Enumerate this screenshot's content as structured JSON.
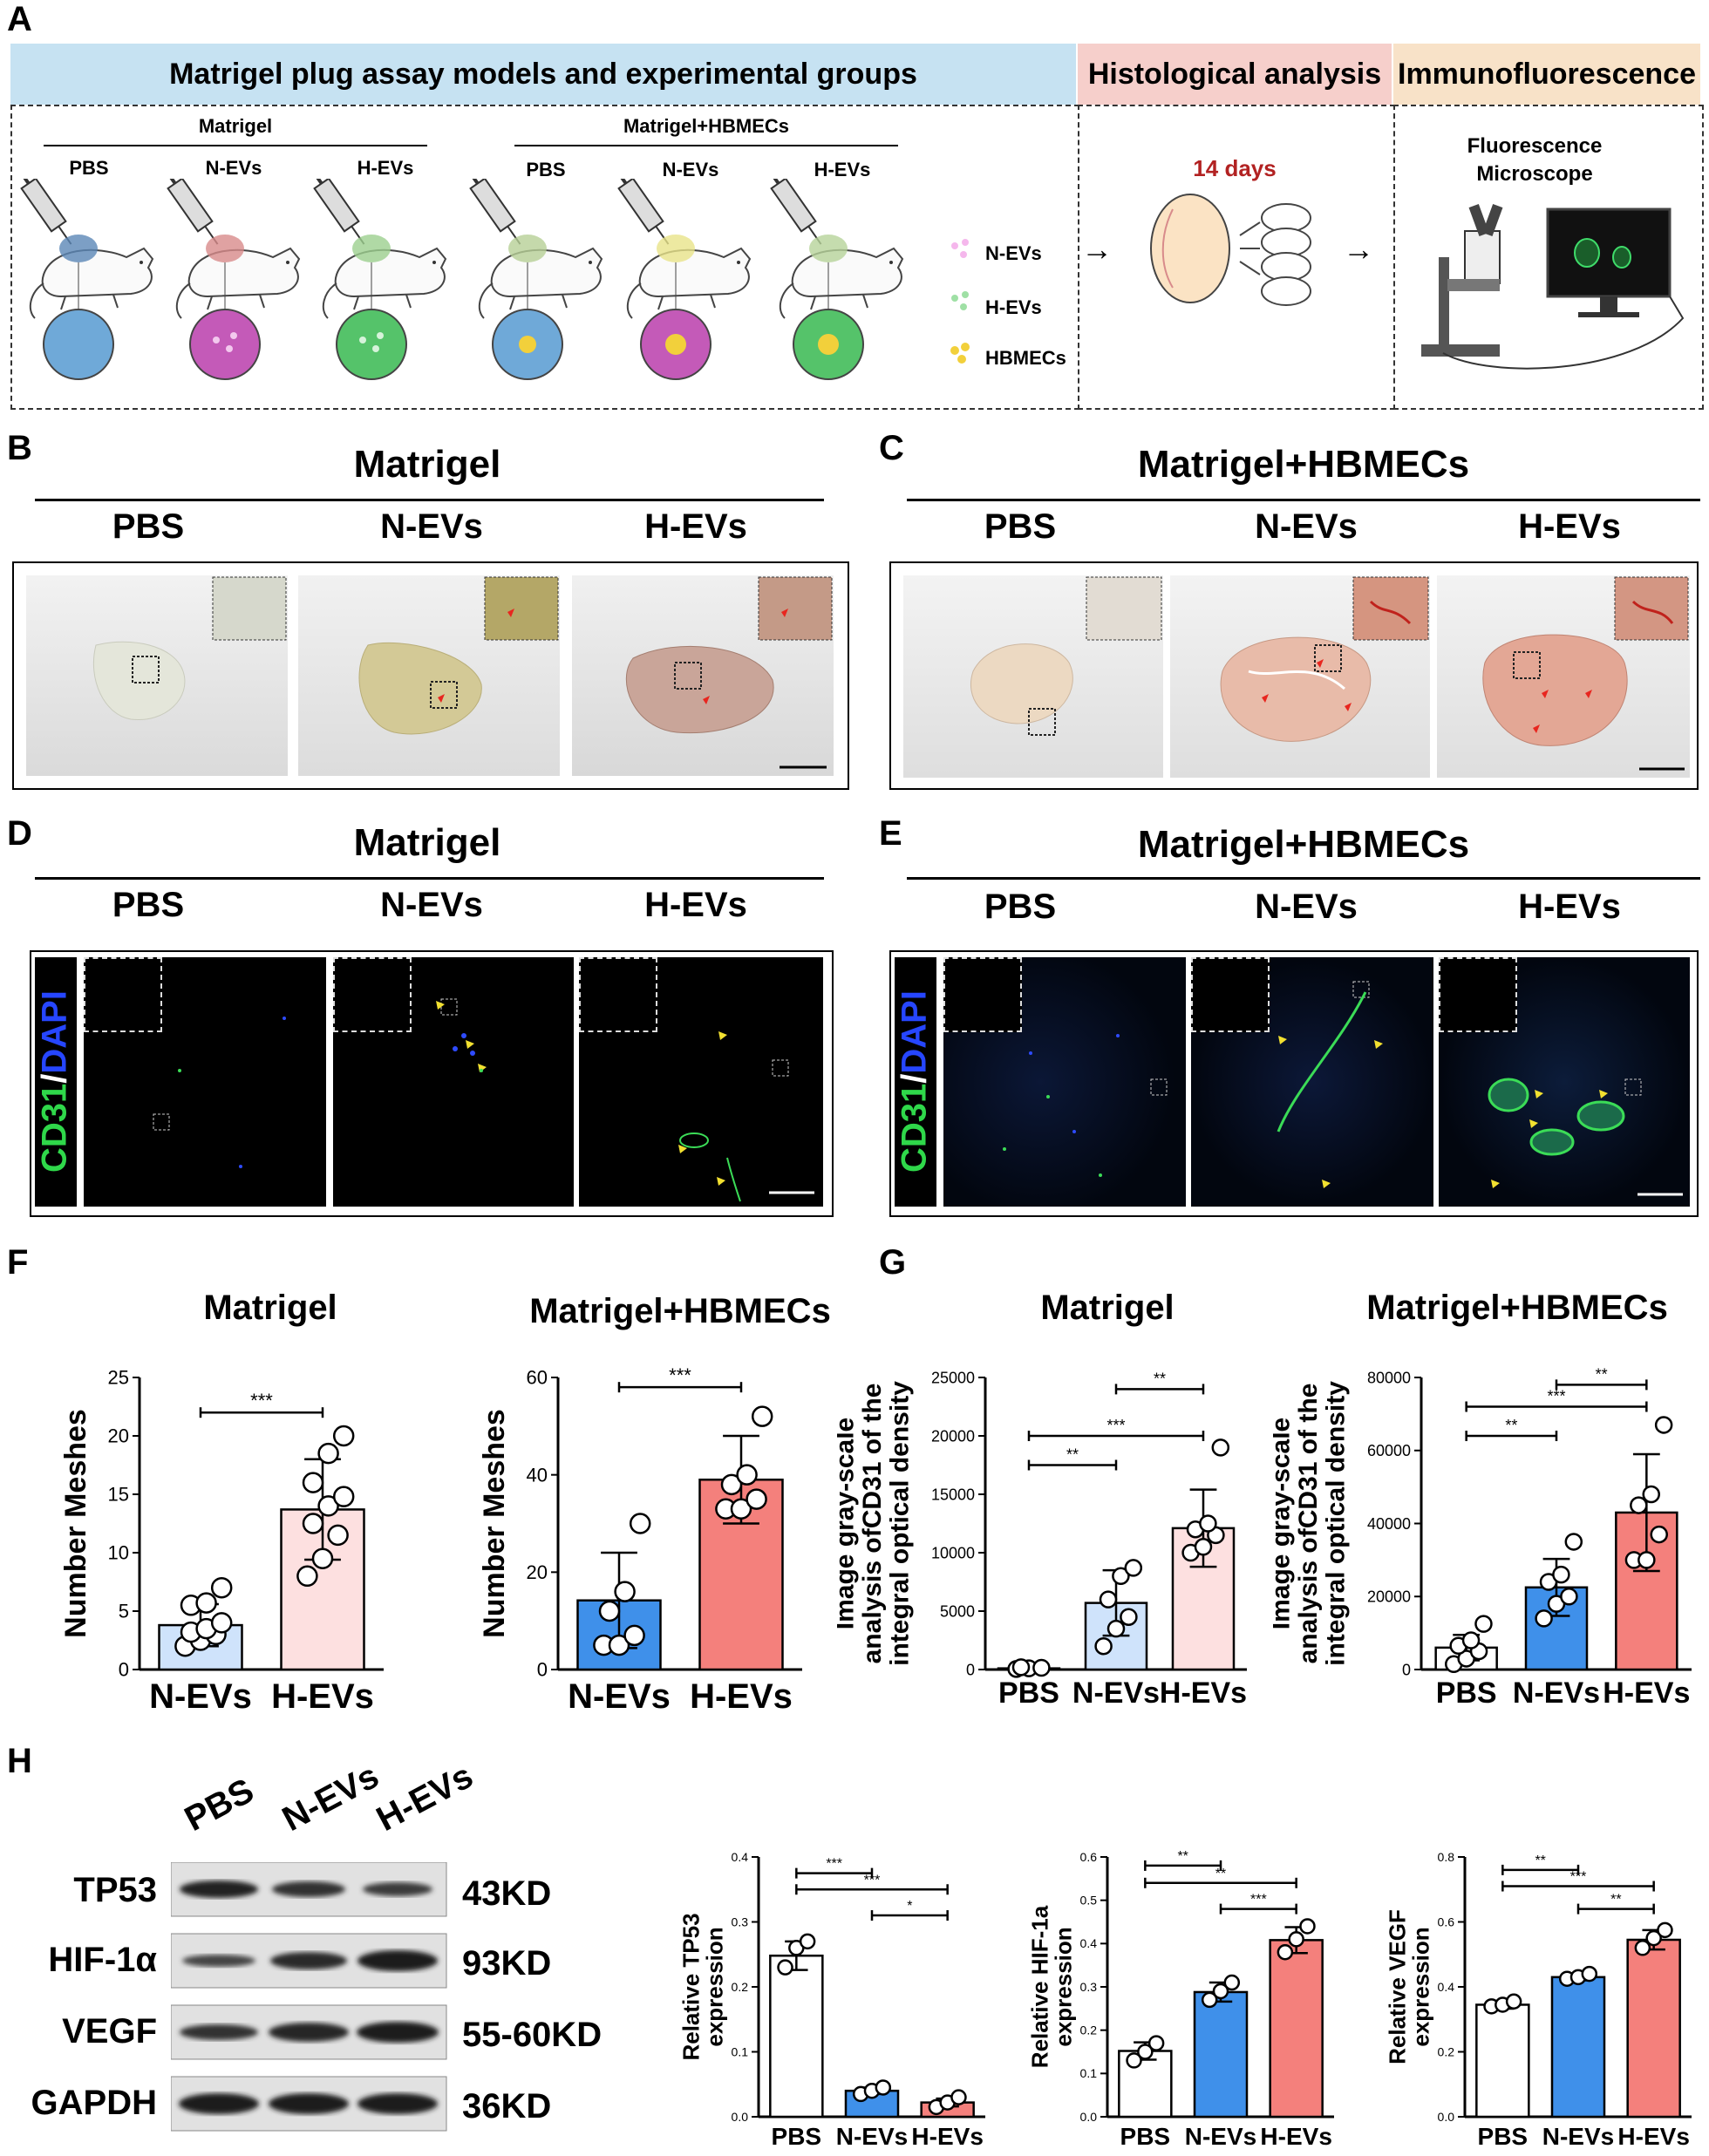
{
  "panels": {
    "A": "A",
    "B": "B",
    "C": "C",
    "D": "D",
    "E": "E",
    "F": "F",
    "G": "G",
    "H": "H"
  },
  "panelA": {
    "banner_left": "Matrigel plug assay models and experimental groups",
    "banner_mid": "Histological analysis",
    "banner_right": "Immunofluorescence",
    "group1": "Matrigel",
    "group2": "Matrigel+HBMECs",
    "labels": [
      "PBS",
      "N-EVs",
      "H-EVs",
      "PBS",
      "N-EVs",
      "H-EVs"
    ],
    "legend": [
      "N-EVs",
      "H-EVs",
      "HBMECs"
    ],
    "days": "14 days",
    "microscope": "Fluorescence\nMicroscope",
    "colors": {
      "banner_left": "#c6e2f2",
      "banner_mid": "#f6cfcb",
      "banner_right": "#f8e2c8",
      "days": "#b22222"
    }
  },
  "panelB": {
    "title": "Matrigel",
    "cols": [
      "PBS",
      "N-EVs",
      "H-EVs"
    ]
  },
  "panelC": {
    "title": "Matrigel+HBMECs",
    "cols": [
      "PBS",
      "N-EVs",
      "H-EVs"
    ]
  },
  "panelD": {
    "title": "Matrigel",
    "cols": [
      "PBS",
      "N-EVs",
      "H-EVs"
    ],
    "stain_a": "CD31",
    "stain_sep": "/",
    "stain_b": "DAPI"
  },
  "panelE": {
    "title": "Matrigel+HBMECs",
    "cols": [
      "PBS",
      "N-EVs",
      "H-EVs"
    ],
    "stain_a": "CD31",
    "stain_sep": "/",
    "stain_b": "DAPI"
  },
  "panelF_titles": [
    "Matrigel",
    "Matrigel+HBMECs"
  ],
  "panelG_titles": [
    "Matrigel",
    "Matrigel+HBMECs"
  ],
  "blot": {
    "lanes": [
      "PBS",
      "N-EVs",
      "H-EVs"
    ],
    "rows": [
      {
        "label": "TP53",
        "kd": "43KD"
      },
      {
        "label": "HIF-1α",
        "kd": "93KD"
      },
      {
        "label": "VEGF",
        "kd": "55-60KD"
      },
      {
        "label": "GAPDH",
        "kd": "36KD"
      }
    ]
  },
  "chart_data": [
    {
      "id": "F1",
      "type": "bar",
      "title": "Matrigel",
      "categories": [
        "N-EVs",
        "H-EVs"
      ],
      "values": [
        3.8,
        13.7
      ],
      "errors": [
        1.8,
        4.3
      ],
      "points": [
        [
          2,
          2.5,
          3,
          3.2,
          3.5,
          4,
          5.5,
          5.7,
          7
        ],
        [
          8,
          9.5,
          11.5,
          12.5,
          14,
          14.8,
          16,
          18.5,
          20
        ]
      ],
      "ylabel": "Number Meshes",
      "ylim": [
        0,
        25
      ],
      "yticks": [
        0,
        5,
        10,
        15,
        20,
        25
      ],
      "colors": [
        "#cfe3fb",
        "#fde0e0"
      ],
      "sig": [
        {
          "from": 0,
          "to": 1,
          "label": "***",
          "y": 22
        }
      ]
    },
    {
      "id": "F2",
      "type": "bar",
      "title": "Matrigel+HBMECs",
      "categories": [
        "N-EVs",
        "H-EVs"
      ],
      "values": [
        14.2,
        39
      ],
      "errors": [
        9.8,
        9
      ],
      "points": [
        [
          5,
          5,
          7,
          12,
          16,
          30
        ],
        [
          33,
          33,
          35,
          38,
          40,
          52
        ]
      ],
      "ylabel": "Number Meshes",
      "ylim": [
        0,
        60
      ],
      "yticks": [
        0,
        20,
        40,
        60
      ],
      "colors": [
        "#3f90ea",
        "#f4807c"
      ],
      "sig": [
        {
          "from": 0,
          "to": 1,
          "label": "***",
          "y": 58
        }
      ]
    },
    {
      "id": "G1",
      "type": "bar",
      "title": "Matrigel",
      "categories": [
        "PBS",
        "N-EVs",
        "H-EVs"
      ],
      "values": [
        100,
        5700,
        12100
      ],
      "errors": [
        100,
        2800,
        3300
      ],
      "points": [
        [
          50,
          100,
          150,
          200
        ],
        [
          2000,
          3500,
          4500,
          6000,
          8000,
          8700
        ],
        [
          10000,
          10500,
          11500,
          12000,
          12500,
          19000
        ]
      ],
      "ylabel": "Image gray-scale\nanalysis ofCD31 of the\nintegral optical density",
      "ylim": [
        0,
        25000
      ],
      "yticks": [
        0,
        5000,
        10000,
        15000,
        20000,
        25000
      ],
      "colors": [
        "#ffffff",
        "#cfe3fb",
        "#fde0e0"
      ],
      "sig": [
        {
          "from": 0,
          "to": 1,
          "label": "**",
          "y": 17500
        },
        {
          "from": 0,
          "to": 2,
          "label": "***",
          "y": 20000
        },
        {
          "from": 1,
          "to": 2,
          "label": "**",
          "y": 24000
        }
      ]
    },
    {
      "id": "G2",
      "type": "bar",
      "title": "Matrigel+HBMECs",
      "categories": [
        "PBS",
        "N-EVs",
        "H-EVs"
      ],
      "values": [
        6000,
        22500,
        43000
      ],
      "errors": [
        3500,
        7800,
        16000
      ],
      "points": [
        [
          1500,
          3000,
          5000,
          6500,
          8000,
          12500
        ],
        [
          14000,
          18000,
          20000,
          24000,
          26000,
          35000
        ],
        [
          30000,
          30000,
          37000,
          45000,
          48000,
          67000
        ]
      ],
      "ylabel": "Image gray-scale\nanalysis ofCD31 of the\nintegral optical density",
      "ylim": [
        0,
        80000
      ],
      "yticks": [
        0,
        20000,
        40000,
        60000,
        80000
      ],
      "colors": [
        "#ffffff",
        "#3f90ea",
        "#f4807c"
      ],
      "sig": [
        {
          "from": 0,
          "to": 1,
          "label": "**",
          "y": 64000
        },
        {
          "from": 0,
          "to": 2,
          "label": "***",
          "y": 72000
        },
        {
          "from": 1,
          "to": 2,
          "label": "**",
          "y": 78000
        }
      ]
    },
    {
      "id": "H1",
      "type": "bar",
      "title": "",
      "categories": [
        "PBS",
        "N-EVs",
        "H-EVs"
      ],
      "values": [
        0.248,
        0.04,
        0.022
      ],
      "errors": [
        0.022,
        0.005,
        0.006
      ],
      "points": [
        [
          0.23,
          0.26,
          0.27
        ],
        [
          0.035,
          0.04,
          0.045
        ],
        [
          0.015,
          0.022,
          0.03
        ]
      ],
      "ylabel": "Relative TP53\nexpression",
      "ylim": [
        0,
        0.4
      ],
      "yticks": [
        0,
        0.1,
        0.2,
        0.3,
        0.4
      ],
      "ytick_labels": [
        "0.0",
        "0.1",
        "0.2",
        "0.3",
        "0.4"
      ],
      "colors": [
        "#ffffff",
        "#3f90ea",
        "#f4807c"
      ],
      "sig": [
        {
          "from": 0,
          "to": 1,
          "label": "***",
          "y": 0.375
        },
        {
          "from": 0,
          "to": 2,
          "label": "***",
          "y": 0.35
        },
        {
          "from": 1,
          "to": 2,
          "label": "*",
          "y": 0.31
        }
      ]
    },
    {
      "id": "H2",
      "type": "bar",
      "title": "",
      "categories": [
        "PBS",
        "N-EVs",
        "H-EVs"
      ],
      "values": [
        0.152,
        0.288,
        0.408
      ],
      "errors": [
        0.02,
        0.022,
        0.03
      ],
      "points": [
        [
          0.13,
          0.15,
          0.17
        ],
        [
          0.27,
          0.29,
          0.31
        ],
        [
          0.38,
          0.41,
          0.44
        ]
      ],
      "ylabel": "Relative HIF-1a\nexpression",
      "ylim": [
        0,
        0.6
      ],
      "yticks": [
        0,
        0.1,
        0.2,
        0.3,
        0.4,
        0.5,
        0.6
      ],
      "ytick_labels": [
        "0.0",
        "0.1",
        "0.2",
        "0.3",
        "0.4",
        "0.5",
        "0.6"
      ],
      "colors": [
        "#ffffff",
        "#3f90ea",
        "#f4807c"
      ],
      "sig": [
        {
          "from": 0,
          "to": 1,
          "label": "**",
          "y": 0.58
        },
        {
          "from": 0,
          "to": 2,
          "label": "**",
          "y": 0.54
        },
        {
          "from": 1,
          "to": 2,
          "label": "***",
          "y": 0.48
        }
      ]
    },
    {
      "id": "H3",
      "type": "bar",
      "title": "",
      "categories": [
        "PBS",
        "N-EVs",
        "H-EVs"
      ],
      "values": [
        0.345,
        0.43,
        0.545
      ],
      "errors": [
        0.012,
        0.01,
        0.03
      ],
      "points": [
        [
          0.34,
          0.345,
          0.355
        ],
        [
          0.425,
          0.43,
          0.44
        ],
        [
          0.52,
          0.55,
          0.575
        ]
      ],
      "ylabel": "Relative VEGF\nexpression",
      "ylim": [
        0,
        0.8
      ],
      "yticks": [
        0,
        0.2,
        0.4,
        0.6,
        0.8
      ],
      "ytick_labels": [
        "0.0",
        "0.2",
        "0.4",
        "0.6",
        "0.8"
      ],
      "colors": [
        "#ffffff",
        "#3f90ea",
        "#f4807c"
      ],
      "sig": [
        {
          "from": 0,
          "to": 1,
          "label": "**",
          "y": 0.76
        },
        {
          "from": 0,
          "to": 2,
          "label": "***",
          "y": 0.71
        },
        {
          "from": 1,
          "to": 2,
          "label": "**",
          "y": 0.64
        }
      ]
    }
  ]
}
